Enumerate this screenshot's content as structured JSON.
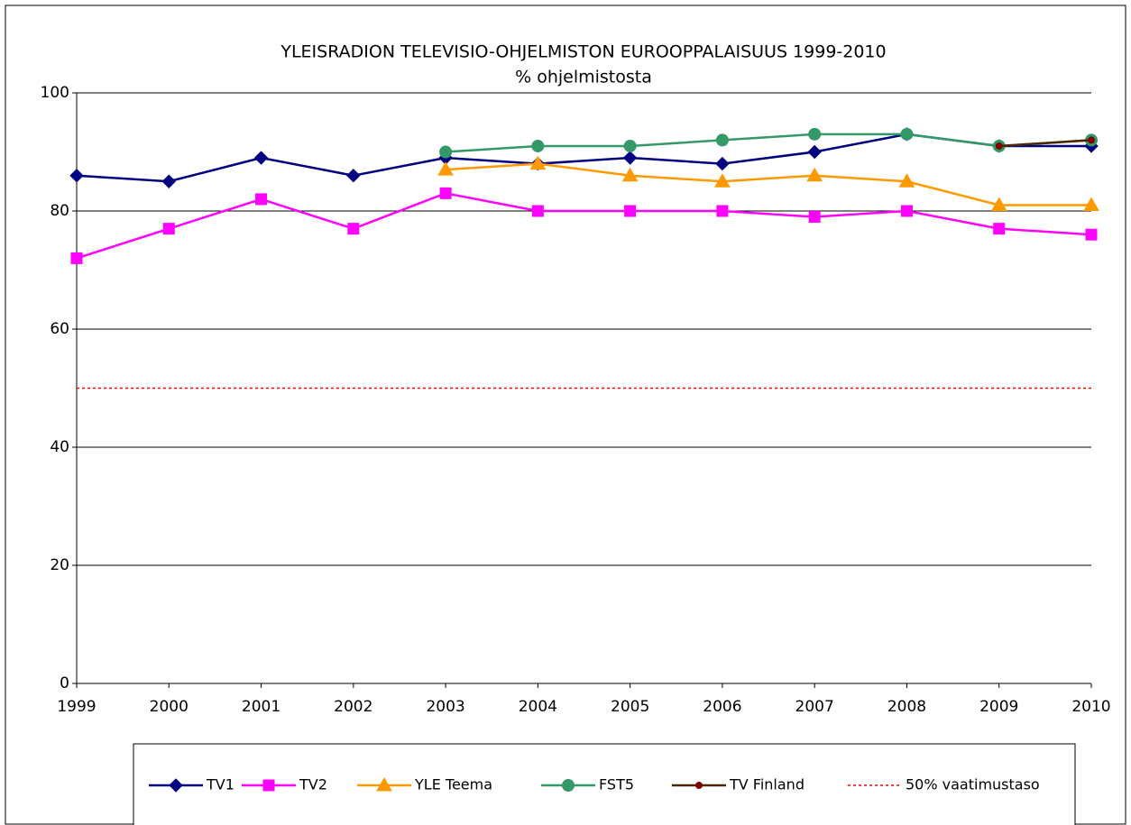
{
  "chart_data": {
    "type": "line",
    "title": "YLEISRADION TELEVISIO-OHJELMISTON EUROOPPALAISUUS 1999-2010",
    "subtitle": "% ohjelmistosta",
    "categories": [
      "1999",
      "2000",
      "2001",
      "2002",
      "2003",
      "2004",
      "2005",
      "2006",
      "2007",
      "2008",
      "2009",
      "2010"
    ],
    "series": [
      {
        "name": "TV1",
        "color": "#000080",
        "marker": "diamond",
        "values": [
          86,
          85,
          89,
          86,
          89,
          88,
          89,
          88,
          90,
          93,
          91,
          91
        ]
      },
      {
        "name": "TV2",
        "color": "#ff00ff",
        "marker": "square",
        "values": [
          72,
          77,
          82,
          77,
          83,
          80,
          80,
          80,
          79,
          80,
          77,
          76
        ]
      },
      {
        "name": "YLE Teema",
        "color": "#ff9900",
        "marker": "triangle",
        "values": [
          null,
          null,
          null,
          null,
          87,
          88,
          86,
          85,
          86,
          85,
          81,
          81
        ]
      },
      {
        "name": "FST5",
        "color": "#339966",
        "marker": "circle",
        "values": [
          null,
          null,
          null,
          null,
          90,
          91,
          91,
          92,
          93,
          93,
          91,
          92
        ]
      },
      {
        "name": "TV Finland",
        "color": "#4d2600",
        "marker": "dot",
        "values": [
          null,
          null,
          null,
          null,
          null,
          null,
          null,
          null,
          null,
          null,
          91,
          92
        ]
      },
      {
        "name": "50% vaatimustaso",
        "color": "#ff0000",
        "marker": "none",
        "dash": "dotted",
        "values": [
          50,
          50,
          50,
          50,
          50,
          50,
          50,
          50,
          50,
          50,
          50,
          50
        ]
      }
    ],
    "ylim": [
      0,
      100
    ],
    "yticks": [
      0,
      20,
      40,
      60,
      80,
      100
    ],
    "grid": true,
    "legend": "bottom"
  }
}
